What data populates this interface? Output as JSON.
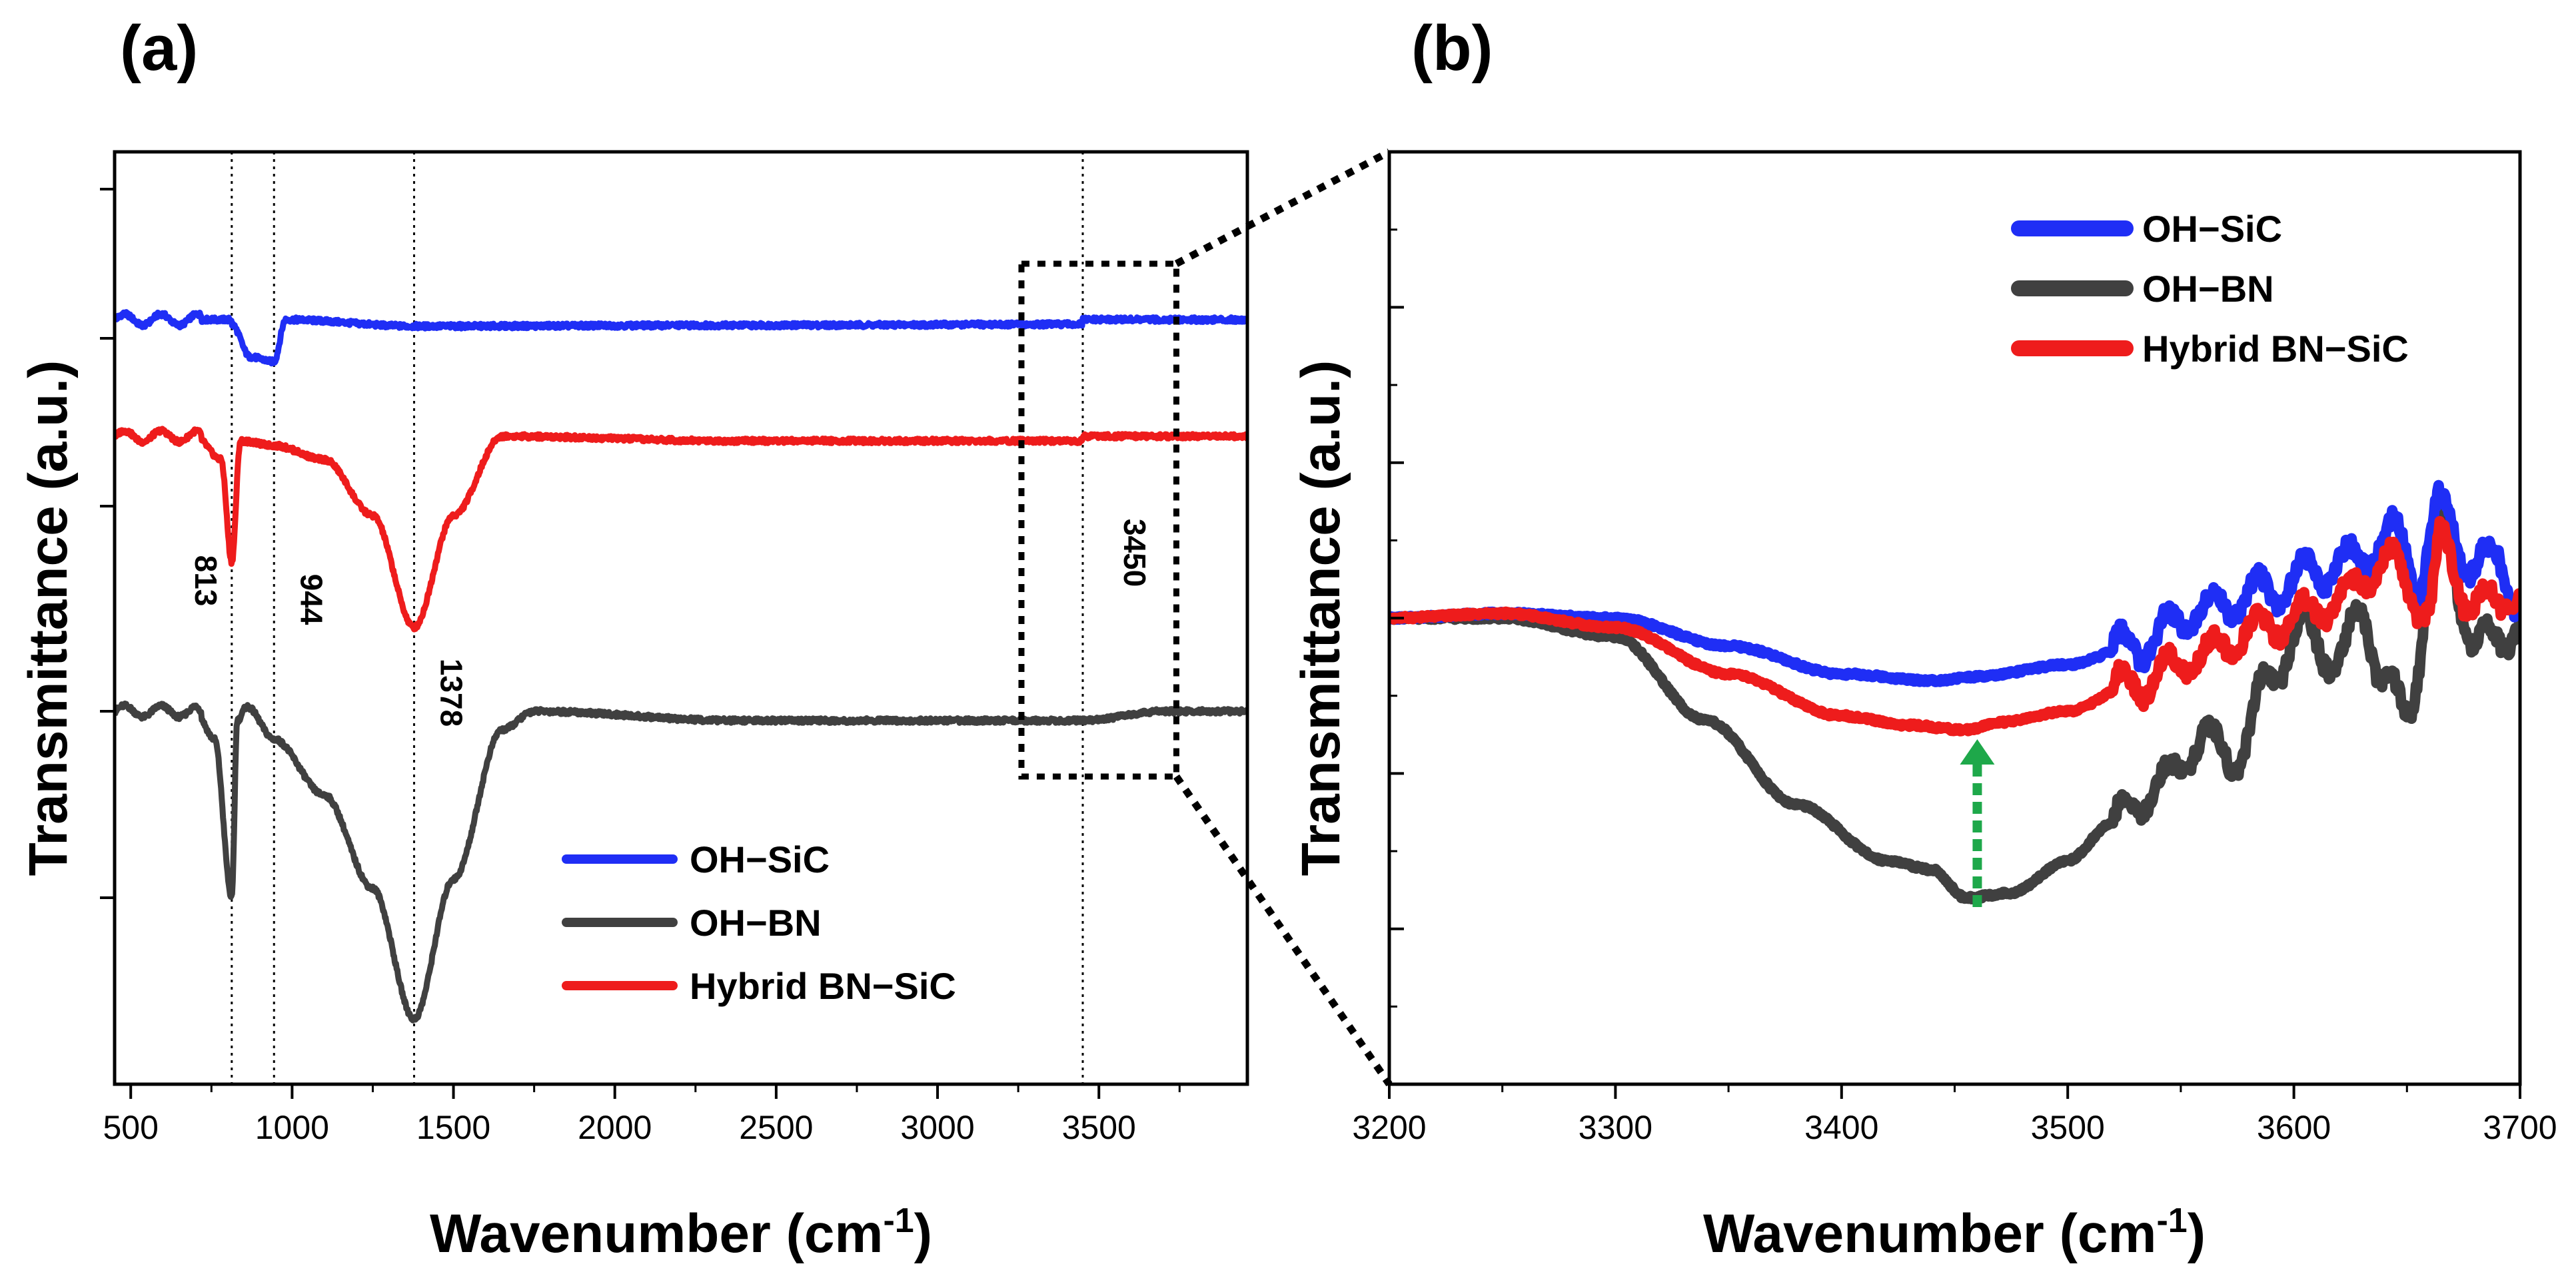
{
  "chart_data": [
    {
      "panel": "(a)",
      "type": "line",
      "xlabel": "Wavenumber (cm",
      "xlabel_sup": "-1",
      "xlabel_close": ")",
      "ylabel": "Transmittance (a.u.)",
      "xlim": [
        450,
        3960
      ],
      "ylim": [
        0,
        100
      ],
      "xticks": [
        500,
        1000,
        1500,
        2000,
        2500,
        3000,
        3500
      ],
      "yticks": [
        20,
        50,
        80
      ],
      "vlines": [
        813,
        944,
        1378,
        3450
      ],
      "annotations": [
        {
          "text": "813",
          "x": 813,
          "y": 54
        },
        {
          "text": "944",
          "x": 944,
          "y": 52
        },
        {
          "text": "1378",
          "x": 1378,
          "y": 42
        },
        {
          "text": "3450",
          "x": 3450,
          "y": 57
        }
      ],
      "zoom_box": {
        "x": [
          3260,
          3740
        ],
        "y": [
          33,
          88
        ]
      },
      "legend_position": "lower-center",
      "series": [
        {
          "name": "OH−SiC",
          "color": "#1f2ef5",
          "baseline": 82,
          "points": [
            [
              813,
              81.5
            ],
            [
              870,
              78
            ],
            [
              944,
              77.5
            ],
            [
              980,
              82
            ],
            [
              1378,
              81.3
            ],
            [
              2370,
              81.4
            ],
            [
              3450,
              81.5
            ]
          ]
        },
        {
          "name": "OH−BN",
          "color": "#404040",
          "baseline": 40,
          "points": [
            [
              700,
              40
            ],
            [
              760,
              37
            ],
            [
              813,
              20
            ],
            [
              830,
              39
            ],
            [
              860,
              40.5
            ],
            [
              944,
              37
            ],
            [
              1100,
              31
            ],
            [
              1250,
              21
            ],
            [
              1378,
              7
            ],
            [
              1500,
              22
            ],
            [
              1650,
              38
            ],
            [
              1750,
              40
            ],
            [
              2370,
              39
            ],
            [
              3450,
              39
            ],
            [
              3700,
              40
            ]
          ]
        },
        {
          "name": "Hybrid BN−SiC",
          "color": "#ee1c1c",
          "baseline": 69.5,
          "points": [
            [
              700,
              69.5
            ],
            [
              780,
              67
            ],
            [
              813,
              56
            ],
            [
              840,
              69
            ],
            [
              944,
              68.5
            ],
            [
              1100,
              67
            ],
            [
              1250,
              61
            ],
            [
              1378,
              49
            ],
            [
              1500,
              61
            ],
            [
              1650,
              69.5
            ],
            [
              2370,
              69
            ],
            [
              3450,
              69
            ]
          ]
        }
      ]
    },
    {
      "panel": "(b)",
      "type": "line",
      "xlabel": "Wavenumber (cm",
      "xlabel_sup": "-1",
      "xlabel_close": ")",
      "ylabel": "Transmittance (a.u.)",
      "xlim": [
        3200,
        3700
      ],
      "ylim": [
        0,
        100
      ],
      "xticks": [
        3200,
        3300,
        3400,
        3500,
        3600,
        3700
      ],
      "ylim_note": "y ticks unlabeled",
      "yticks": [
        16.7,
        33.3,
        50,
        66.7,
        83.3
      ],
      "legend_position": "top-right",
      "arrow": {
        "x": 3460,
        "y_from": 19,
        "y_to": 37,
        "color": "#1ea84a"
      },
      "series": [
        {
          "name": "OH−SiC",
          "color": "#1f2ef5",
          "points": [
            [
              3200,
              50
            ],
            [
              3250,
              50.5
            ],
            [
              3300,
              50
            ],
            [
              3350,
              47
            ],
            [
              3400,
              44
            ],
            [
              3440,
              43.3
            ],
            [
              3460,
              43.7
            ],
            [
              3500,
              45
            ],
            [
              3530,
              47
            ],
            [
              3560,
              51
            ],
            [
              3590,
              53
            ],
            [
              3610,
              55
            ],
            [
              3625,
              56
            ],
            [
              3645,
              59
            ],
            [
              3655,
              54
            ],
            [
              3665,
              62
            ],
            [
              3680,
              55
            ],
            [
              3690,
              57
            ],
            [
              3700,
              51
            ]
          ]
        },
        {
          "name": "OH−BN",
          "color": "#404040",
          "points": [
            [
              3200,
              50
            ],
            [
              3250,
              50
            ],
            [
              3300,
              48
            ],
            [
              3340,
              39
            ],
            [
              3380,
              30
            ],
            [
              3420,
              24
            ],
            [
              3440,
              23
            ],
            [
              3455,
              20
            ],
            [
              3475,
              20.5
            ],
            [
              3500,
              24
            ],
            [
              3520,
              28
            ],
            [
              3540,
              32
            ],
            [
              3560,
              37
            ],
            [
              3575,
              35
            ],
            [
              3590,
              44
            ],
            [
              3605,
              49
            ],
            [
              3620,
              45
            ],
            [
              3630,
              51
            ],
            [
              3640,
              43
            ],
            [
              3650,
              40
            ],
            [
              3665,
              61
            ],
            [
              3680,
              47
            ],
            [
              3700,
              49
            ]
          ]
        },
        {
          "name": "Hybrid BN−SiC",
          "color": "#ee1c1c",
          "points": [
            [
              3200,
              50
            ],
            [
              3250,
              50.5
            ],
            [
              3300,
              49
            ],
            [
              3350,
              44
            ],
            [
              3400,
              39.5
            ],
            [
              3430,
              38.5
            ],
            [
              3455,
              38
            ],
            [
              3470,
              38.8
            ],
            [
              3500,
              40
            ],
            [
              3530,
              43
            ],
            [
              3560,
              46
            ],
            [
              3580,
              48.5
            ],
            [
              3600,
              50
            ],
            [
              3620,
              52
            ],
            [
              3640,
              56
            ],
            [
              3660,
              51
            ],
            [
              3665,
              58
            ],
            [
              3680,
              51
            ],
            [
              3700,
              53
            ]
          ]
        }
      ]
    }
  ]
}
